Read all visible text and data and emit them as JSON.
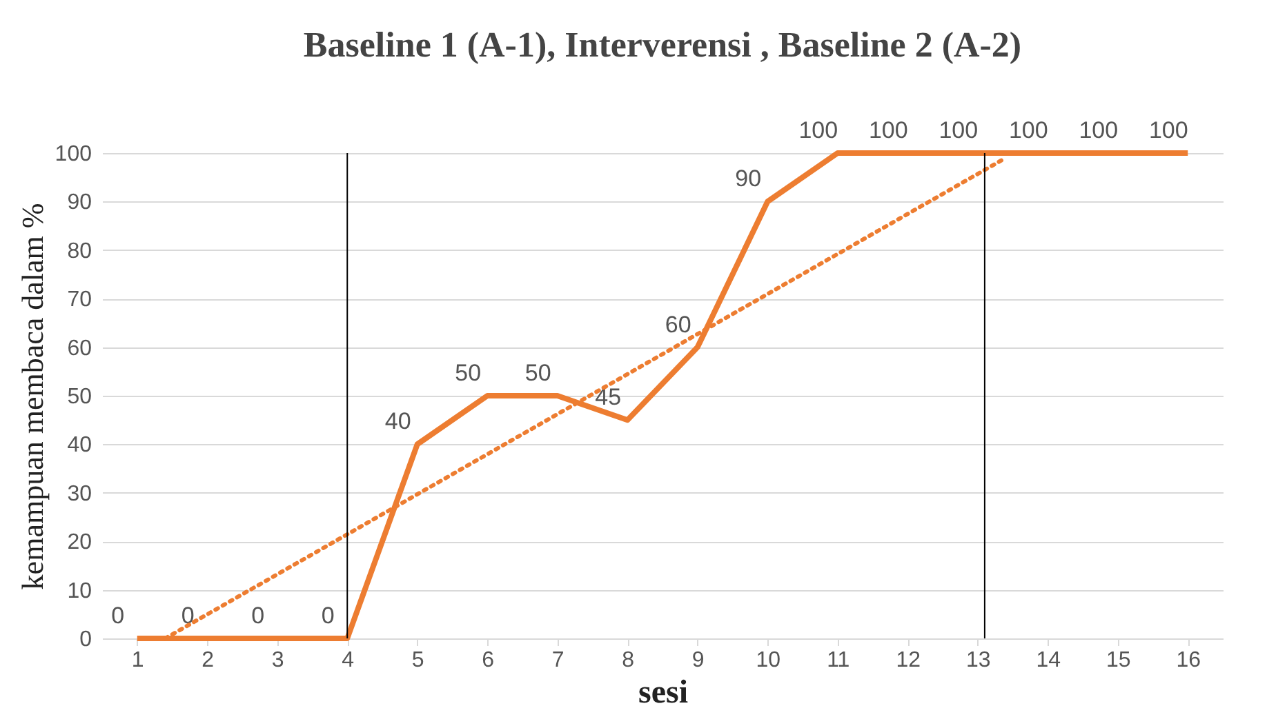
{
  "chart_data": {
    "type": "line",
    "title": "Baseline 1 (A-1), Interverensi , Baseline 2 (A-2)",
    "xlabel": "sesi",
    "ylabel": "kemampuan membaca dalam %",
    "x": [
      1,
      2,
      3,
      4,
      5,
      6,
      7,
      8,
      9,
      10,
      11,
      12,
      13,
      14,
      15,
      16
    ],
    "series": [
      {
        "color": "#ed7d31",
        "values": [
          0,
          0,
          0,
          0,
          40,
          50,
          50,
          45,
          60,
          90,
          100,
          100,
          100,
          100,
          100,
          100
        ],
        "value_labels": [
          "0",
          "0",
          "0",
          "0",
          "40",
          "50",
          "50",
          "45",
          "60",
          "90",
          "100",
          "100",
          "100",
          "100",
          "100",
          "100"
        ],
        "line_style": "solid"
      },
      {
        "color": "#ed7d31",
        "x": [
          1.4,
          13.4
        ],
        "values": [
          0,
          99
        ],
        "line_style": "dotted"
      }
    ],
    "xlim": [
      0.5,
      16.5
    ],
    "xticks": [
      1,
      2,
      3,
      4,
      5,
      6,
      7,
      8,
      9,
      10,
      11,
      12,
      13,
      14,
      15,
      16
    ],
    "ylim": [
      0,
      100
    ],
    "yticks": [
      0,
      10,
      20,
      30,
      40,
      50,
      60,
      70,
      80,
      90,
      100
    ],
    "ref_lines": [
      {
        "axis": "x",
        "value": 4,
        "color": "#000000"
      },
      {
        "axis": "x",
        "value": 13.1,
        "color": "#000000"
      }
    ],
    "grid": "y",
    "marker": "none"
  }
}
